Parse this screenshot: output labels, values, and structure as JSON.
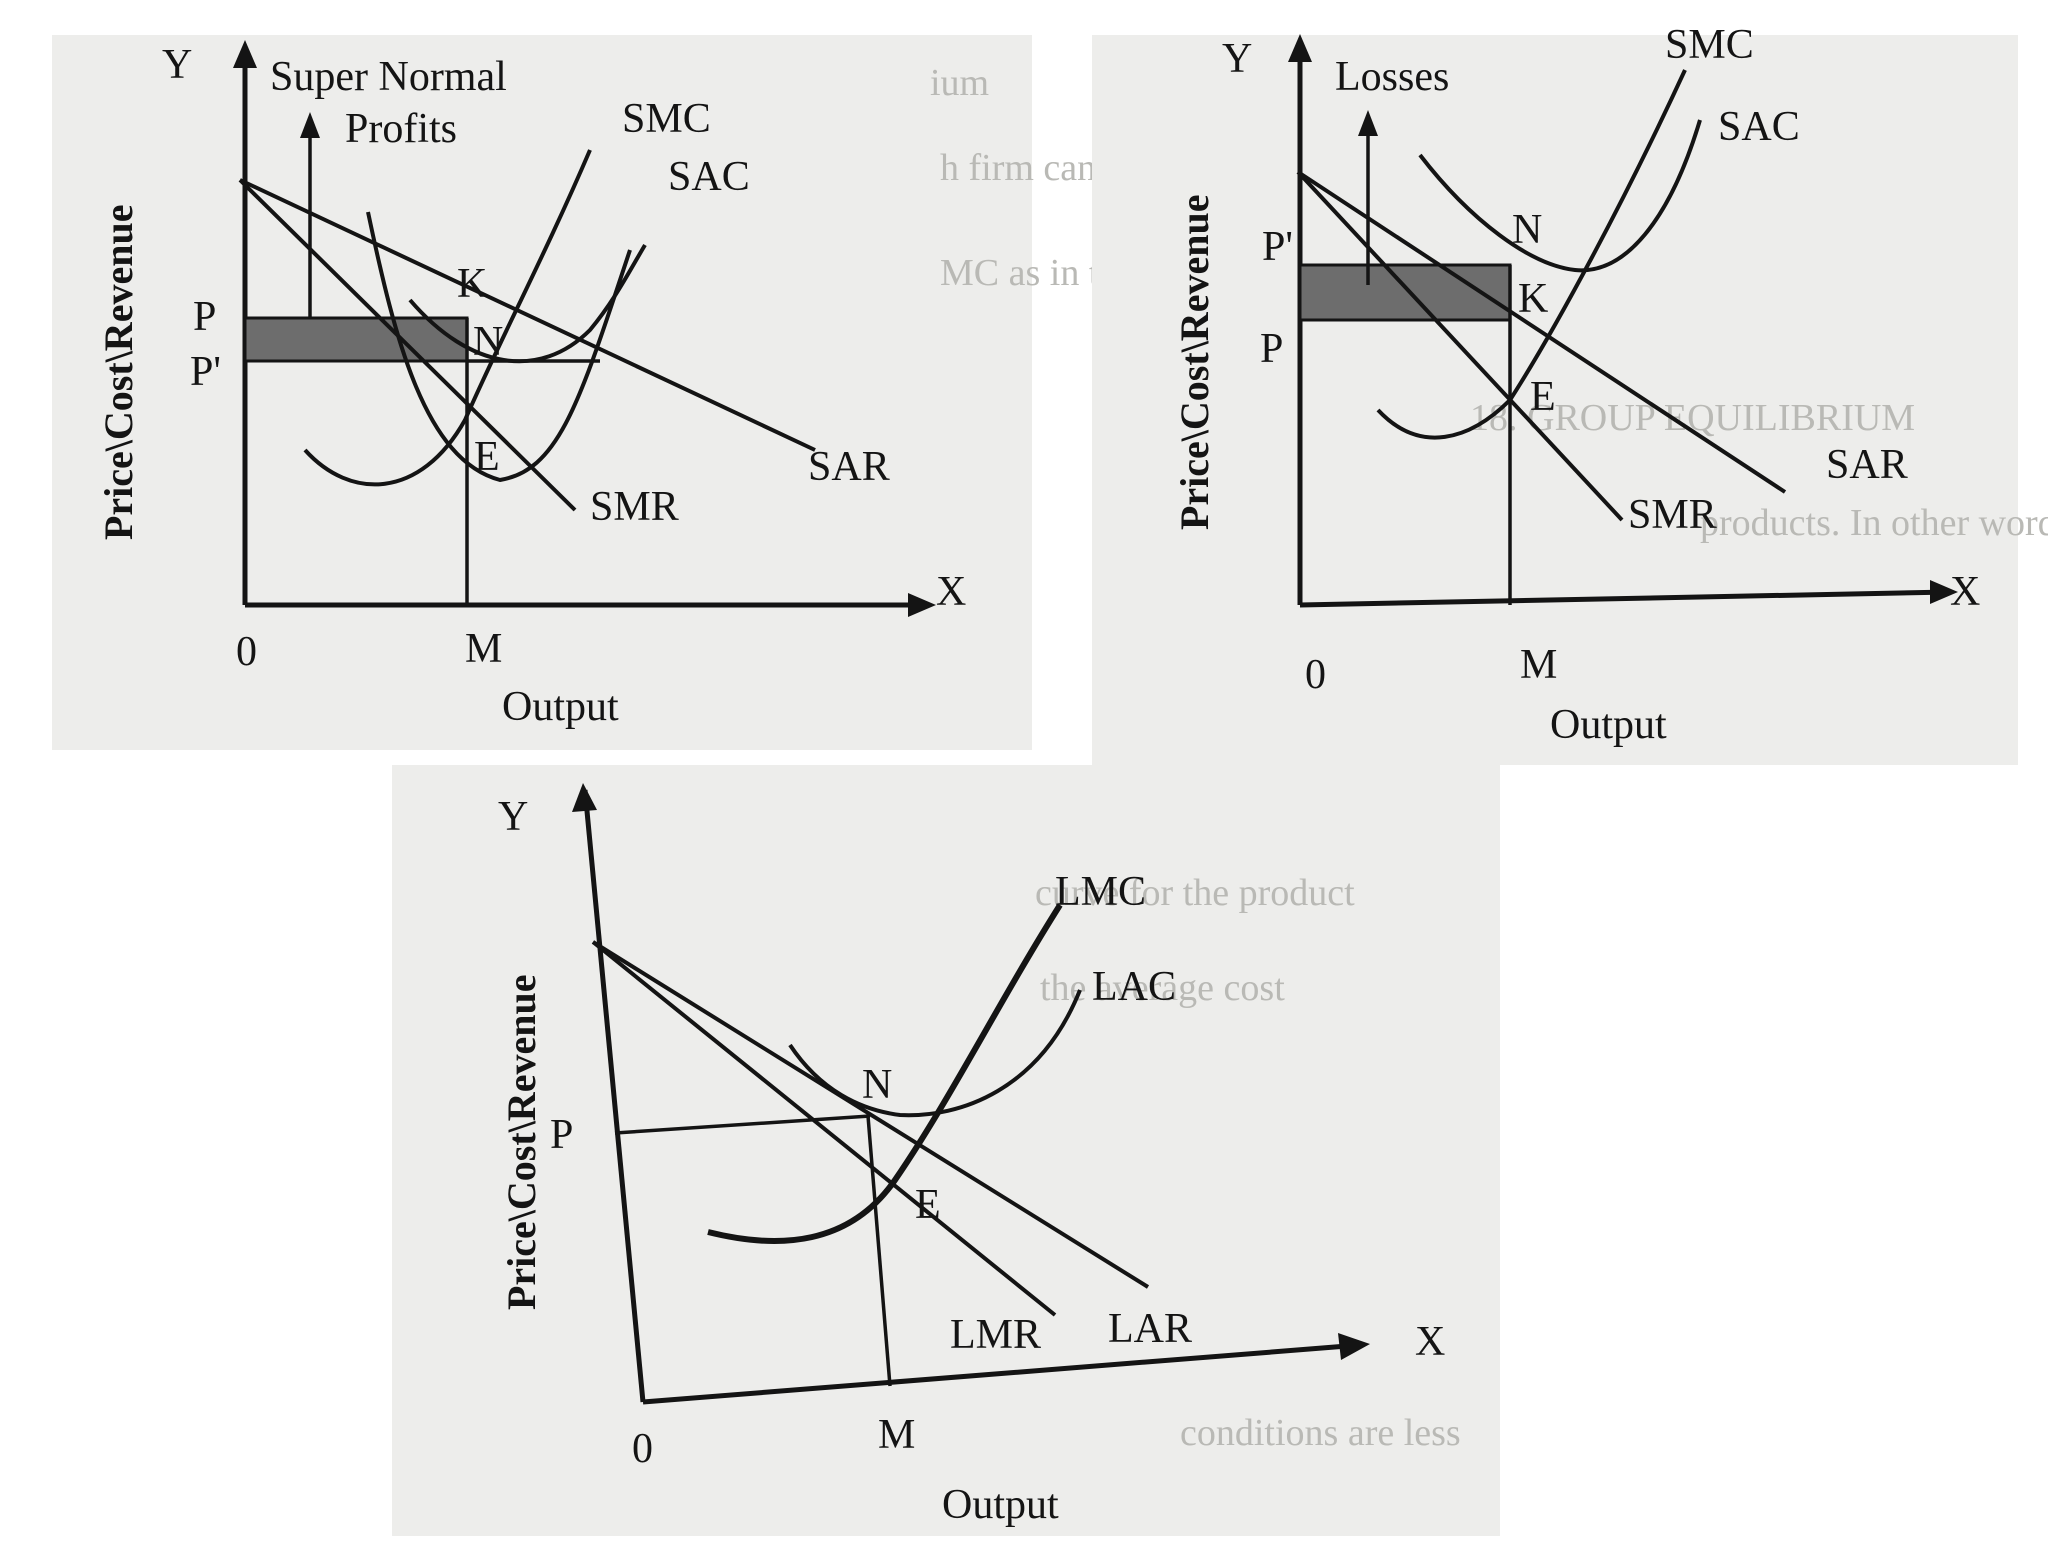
{
  "diagrams": {
    "profits": {
      "y_axis": "Y",
      "x_axis": "X",
      "origin": "0",
      "y_axis_title": "Price\\Cost\\Revenue",
      "x_axis_title": "Output",
      "annotation_line1": "Super Normal",
      "annotation_line2": "Profits",
      "smc": "SMC",
      "sac": "SAC",
      "sar": "SAR",
      "smr": "SMR",
      "k": "K",
      "n": "N",
      "e": "E",
      "p": "P",
      "p_prime": "P'",
      "m": "M"
    },
    "losses": {
      "y_axis": "Y",
      "x_axis": "X",
      "origin": "0",
      "y_axis_title": "Price\\Cost\\Revenue",
      "x_axis_title": "Output",
      "annotation": "Losses",
      "smc": "SMC",
      "sac": "SAC",
      "sar": "SAR",
      "smr": "SMR",
      "n": "N",
      "k": "K",
      "e": "E",
      "p_prime": "P'",
      "p": "P",
      "m": "M"
    },
    "long_run": {
      "y_axis": "Y",
      "x_axis": "X",
      "origin": "0",
      "y_axis_title": "Price\\Cost\\Revenue",
      "x_axis_title": "Output",
      "lmc": "LMC",
      "lac": "LAC",
      "lmr": "LMR",
      "lar": "LAR",
      "n": "N",
      "e": "E",
      "p": "P",
      "m": "M"
    }
  },
  "colors": {
    "ink": "#141414",
    "shade": "#6d6d6d",
    "paper": "#ededeb"
  }
}
